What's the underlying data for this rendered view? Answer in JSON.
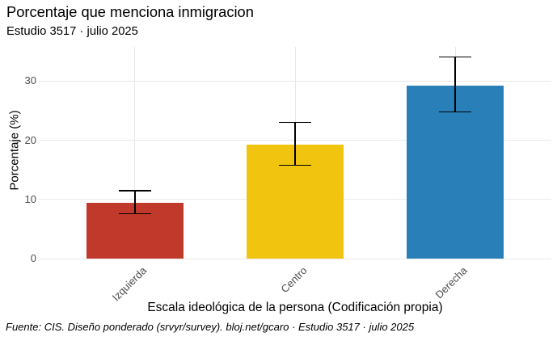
{
  "title": "Porcentaje que menciona inmigracion",
  "subtitle": "Estudio 3517 · julio 2025",
  "caption": "Fuente: CIS. Diseño ponderado (srvyr/survey). bloj.net/gcaro · Estudio 3517 · julio 2025",
  "chart_data": {
    "type": "bar",
    "title": "Porcentaje que menciona inmigracion",
    "subtitle": "Estudio 3517 · julio 2025",
    "xlabel": "Escala ideológica de la persona (Codificación propia)",
    "ylabel": "Porcentaje (%)",
    "categories": [
      "Izquierda",
      "Centro",
      "Derecha"
    ],
    "values": [
      9.4,
      19.3,
      29.2
    ],
    "error_low": [
      7.6,
      15.8,
      24.8
    ],
    "error_high": [
      11.5,
      23.0,
      34.1
    ],
    "colors": [
      "#C0392B",
      "#F1C40F",
      "#2980B9"
    ],
    "yticks": [
      0,
      10,
      20,
      30
    ],
    "ylim": [
      0,
      35.8
    ],
    "grid": "major-only",
    "legend": "none",
    "error_bars": true
  }
}
